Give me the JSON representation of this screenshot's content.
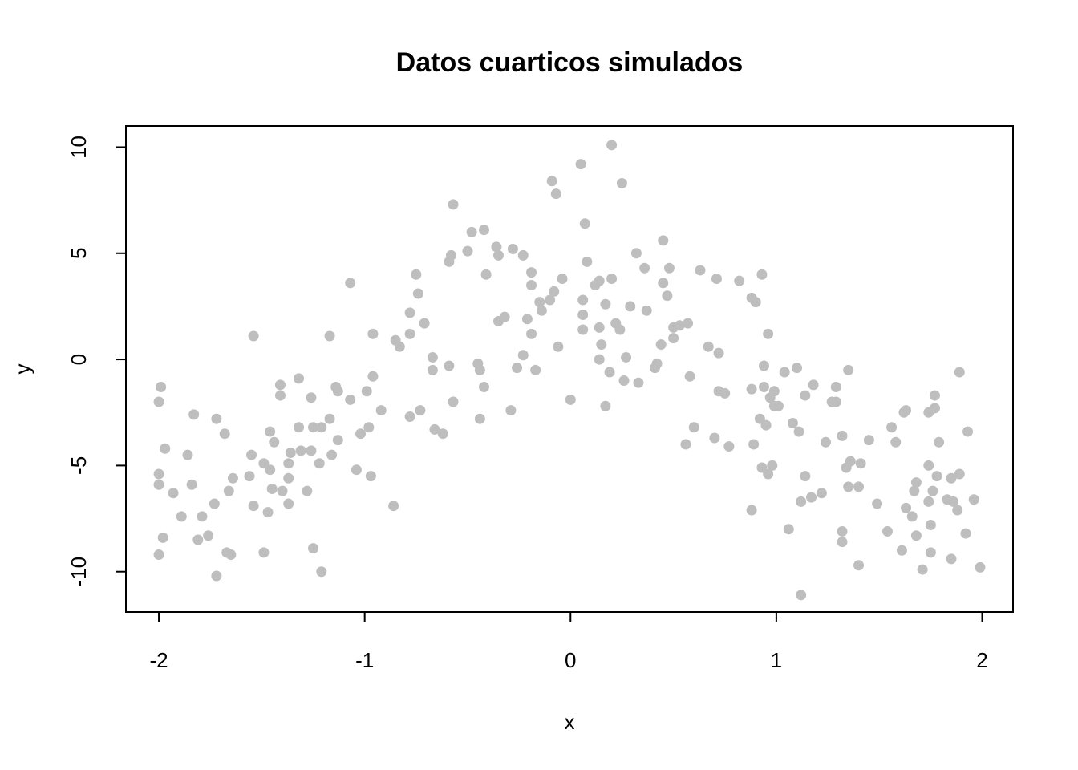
{
  "chart_data": {
    "type": "scatter",
    "title": "Datos cuarticos simulados",
    "x_label": "x",
    "y_label": "y",
    "color": "#bebebe",
    "xlim": [
      -2.16,
      2.15
    ],
    "ylim": [
      -11.9,
      11.0
    ],
    "xticks": [
      -2,
      -1,
      0,
      1,
      2
    ],
    "yticks": [
      -10,
      -5,
      0,
      5,
      10
    ],
    "grid": false,
    "x": [
      -2.0,
      -1.99,
      -2.0,
      -2.0,
      -1.97,
      -2.0,
      -1.98,
      -1.93,
      -1.89,
      -1.86,
      -1.84,
      -1.83,
      -1.81,
      -1.79,
      -1.76,
      -1.73,
      -1.72,
      -1.72,
      -1.68,
      -1.67,
      -1.65,
      -1.66,
      -1.64,
      -1.55,
      -1.54,
      -1.54,
      -1.56,
      -1.49,
      -1.49,
      -1.46,
      -1.47,
      -1.46,
      -1.45,
      -1.44,
      -1.41,
      -1.41,
      -1.4,
      -1.37,
      -1.37,
      -1.37,
      -1.36,
      -1.32,
      -1.32,
      -1.31,
      -1.28,
      -1.26,
      -1.25,
      -1.25,
      -1.26,
      -1.22,
      -1.21,
      -1.21,
      -1.17,
      -1.17,
      -1.16,
      -1.14,
      -1.13,
      -1.13,
      -1.07,
      -1.07,
      -1.04,
      -1.02,
      -0.99,
      -0.98,
      -0.97,
      -0.96,
      -0.96,
      -0.92,
      -0.86,
      -0.85,
      -0.83,
      -0.78,
      -0.78,
      -0.78,
      -0.75,
      -0.74,
      -0.73,
      -0.71,
      -0.67,
      -0.67,
      -0.66,
      -0.62,
      -0.59,
      -0.59,
      -0.58,
      -0.57,
      -0.57,
      -0.5,
      -0.48,
      -0.45,
      -0.44,
      -0.44,
      -0.42,
      -0.41,
      -0.42,
      -0.36,
      -0.35,
      -0.35,
      -0.32,
      -0.29,
      -0.28,
      -0.26,
      -0.23,
      -0.23,
      -0.21,
      -0.19,
      -0.19,
      -0.19,
      -0.17,
      -0.15,
      -0.14,
      -0.1,
      -0.08,
      -0.09,
      -0.07,
      -0.06,
      -0.04,
      0.0,
      0.05,
      0.06,
      0.06,
      0.06,
      0.07,
      0.08,
      0.12,
      0.14,
      0.14,
      0.14,
      0.15,
      0.17,
      0.17,
      0.19,
      0.2,
      0.2,
      0.22,
      0.24,
      0.25,
      0.26,
      0.27,
      0.29,
      0.32,
      0.33,
      0.36,
      0.37,
      0.41,
      0.42,
      0.44,
      0.45,
      0.45,
      0.47,
      0.48,
      0.5,
      0.5,
      0.53,
      0.57,
      0.56,
      0.58,
      0.6,
      0.63,
      0.67,
      0.7,
      0.71,
      0.72,
      0.72,
      0.75,
      0.77,
      0.82,
      0.88,
      0.88,
      0.88,
      0.89,
      0.9,
      0.92,
      0.93,
      0.93,
      0.94,
      0.94,
      0.95,
      0.96,
      0.96,
      0.97,
      0.98,
      0.99,
      0.99,
      1.01,
      1.04,
      1.06,
      1.08,
      1.1,
      1.11,
      1.12,
      1.12,
      1.14,
      1.14,
      1.17,
      1.18,
      1.22,
      1.24,
      1.27,
      1.29,
      1.29,
      1.32,
      1.32,
      1.32,
      1.34,
      1.35,
      1.35,
      1.36,
      1.4,
      1.41,
      1.4,
      1.45,
      1.49,
      1.54,
      1.56,
      1.58,
      1.61,
      1.62,
      1.63,
      1.63,
      1.67,
      1.68,
      1.68,
      1.71,
      1.74,
      1.74,
      1.74,
      1.75,
      1.75,
      1.76,
      1.77,
      1.77,
      1.78,
      1.79,
      1.83,
      1.85,
      1.85,
      1.86,
      1.88,
      1.89,
      1.89,
      1.92,
      1.93,
      1.96,
      1.99,
      1.66
    ],
    "values": [
      -2.0,
      -1.3,
      -5.4,
      -5.9,
      -4.2,
      -9.2,
      -8.4,
      -6.3,
      -7.4,
      -4.5,
      -5.9,
      -2.6,
      -8.5,
      -7.4,
      -8.3,
      -6.8,
      -10.2,
      -2.8,
      -3.5,
      -9.1,
      -9.2,
      -6.2,
      -5.6,
      -4.5,
      1.1,
      -6.9,
      -5.5,
      -4.9,
      -9.1,
      -3.4,
      -7.2,
      -5.2,
      -6.1,
      -3.9,
      -1.7,
      -1.2,
      -6.2,
      -4.9,
      -6.8,
      -5.6,
      -4.4,
      -0.9,
      -3.2,
      -4.3,
      -6.2,
      -1.8,
      -8.9,
      -3.2,
      -4.3,
      -4.9,
      -10.0,
      -3.2,
      -2.8,
      1.1,
      -4.5,
      -1.3,
      -1.5,
      -3.8,
      -1.9,
      3.6,
      -5.2,
      -3.5,
      -1.5,
      -3.2,
      -5.5,
      1.2,
      -0.8,
      -2.4,
      -6.9,
      0.9,
      0.6,
      2.2,
      1.2,
      -2.7,
      4.0,
      3.1,
      -2.4,
      1.7,
      0.1,
      -0.5,
      -3.3,
      -3.5,
      4.6,
      -0.3,
      4.9,
      7.3,
      -2.0,
      5.1,
      6.0,
      -0.2,
      -0.5,
      -2.8,
      6.1,
      4.0,
      -1.3,
      5.3,
      1.8,
      4.9,
      2.0,
      -2.4,
      5.2,
      -0.4,
      4.9,
      0.2,
      1.9,
      4.1,
      1.2,
      3.5,
      -0.5,
      2.7,
      2.3,
      2.8,
      3.2,
      8.4,
      7.8,
      0.6,
      3.8,
      -1.9,
      9.2,
      2.8,
      2.1,
      1.4,
      6.4,
      4.6,
      3.5,
      3.7,
      1.5,
      0.0,
      0.7,
      2.6,
      -2.2,
      -0.6,
      10.1,
      3.8,
      1.7,
      1.4,
      8.3,
      -1.0,
      0.1,
      2.5,
      5.0,
      -1.1,
      4.3,
      2.3,
      -0.4,
      -0.2,
      0.7,
      5.6,
      3.6,
      3.0,
      4.3,
      1.5,
      1.0,
      1.6,
      1.7,
      -4.0,
      -0.8,
      -3.2,
      4.2,
      0.6,
      -3.7,
      3.8,
      -1.5,
      0.3,
      -1.6,
      -4.1,
      3.7,
      -1.4,
      2.9,
      -7.1,
      -4.0,
      2.7,
      -2.8,
      4.0,
      -5.1,
      -1.3,
      -0.3,
      -3.1,
      -5.4,
      1.2,
      -1.8,
      -5.0,
      -2.2,
      -1.5,
      -2.2,
      -0.6,
      -8.0,
      -3.0,
      -0.4,
      -3.4,
      -11.1,
      -6.7,
      -5.5,
      -1.7,
      -6.5,
      -1.2,
      -6.3,
      -3.9,
      -2.0,
      -1.3,
      -2.0,
      -3.6,
      -8.1,
      -8.6,
      -5.1,
      -0.5,
      -6.0,
      -4.8,
      -6.0,
      -4.9,
      -9.7,
      -3.8,
      -6.8,
      -8.1,
      -3.2,
      -3.9,
      -9.0,
      -2.5,
      -2.4,
      -7.0,
      -6.2,
      -5.8,
      -8.3,
      -9.9,
      -2.5,
      -5.0,
      -6.7,
      -7.8,
      -9.1,
      -6.2,
      -1.7,
      -2.3,
      -5.5,
      -3.9,
      -6.6,
      -9.4,
      -5.6,
      -6.7,
      -7.1,
      -0.6,
      -5.4,
      -8.2,
      -3.4,
      -6.6,
      -9.8,
      -7.4
    ]
  }
}
